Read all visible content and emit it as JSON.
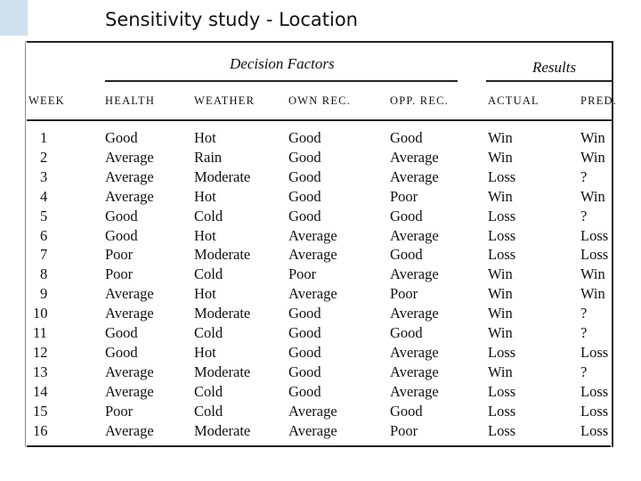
{
  "slide": {
    "title": "Sensitivity study - Location"
  },
  "table": {
    "group_headers": {
      "decision_factors": "Decision Factors",
      "results": "Results"
    },
    "columns": [
      "WEEK",
      "HEALTH",
      "WEATHER",
      "OWN REC.",
      "OPP. REC.",
      "ACTUAL",
      "PRED."
    ],
    "rows": [
      [
        "1",
        "Good",
        "Hot",
        "Good",
        "Good",
        "Win",
        "Win"
      ],
      [
        "2",
        "Average",
        "Rain",
        "Good",
        "Average",
        "Win",
        "Win"
      ],
      [
        "3",
        "Average",
        "Moderate",
        "Good",
        "Average",
        "Loss",
        "?"
      ],
      [
        "4",
        "Average",
        "Hot",
        "Good",
        "Poor",
        "Win",
        "Win"
      ],
      [
        "5",
        "Good",
        "Cold",
        "Good",
        "Good",
        "Loss",
        "?"
      ],
      [
        "6",
        "Good",
        "Hot",
        "Average",
        "Average",
        "Loss",
        "Loss"
      ],
      [
        "7",
        "Poor",
        "Moderate",
        "Average",
        "Good",
        "Loss",
        "Loss"
      ],
      [
        "8",
        "Poor",
        "Cold",
        "Poor",
        "Average",
        "Win",
        "Win"
      ],
      [
        "9",
        "Average",
        "Hot",
        "Average",
        "Poor",
        "Win",
        "Win"
      ],
      [
        "10",
        "Average",
        "Moderate",
        "Good",
        "Average",
        "Win",
        "?"
      ],
      [
        "11",
        "Good",
        "Cold",
        "Good",
        "Good",
        "Win",
        "?"
      ],
      [
        "12",
        "Good",
        "Hot",
        "Good",
        "Average",
        "Loss",
        "Loss"
      ],
      [
        "13",
        "Average",
        "Moderate",
        "Good",
        "Average",
        "Win",
        "?"
      ],
      [
        "14",
        "Average",
        "Cold",
        "Good",
        "Average",
        "Loss",
        "Loss"
      ],
      [
        "15",
        "Poor",
        "Cold",
        "Average",
        "Good",
        "Loss",
        "Loss"
      ],
      [
        "16",
        "Average",
        "Moderate",
        "Average",
        "Poor",
        "Loss",
        "Loss"
      ]
    ]
  }
}
